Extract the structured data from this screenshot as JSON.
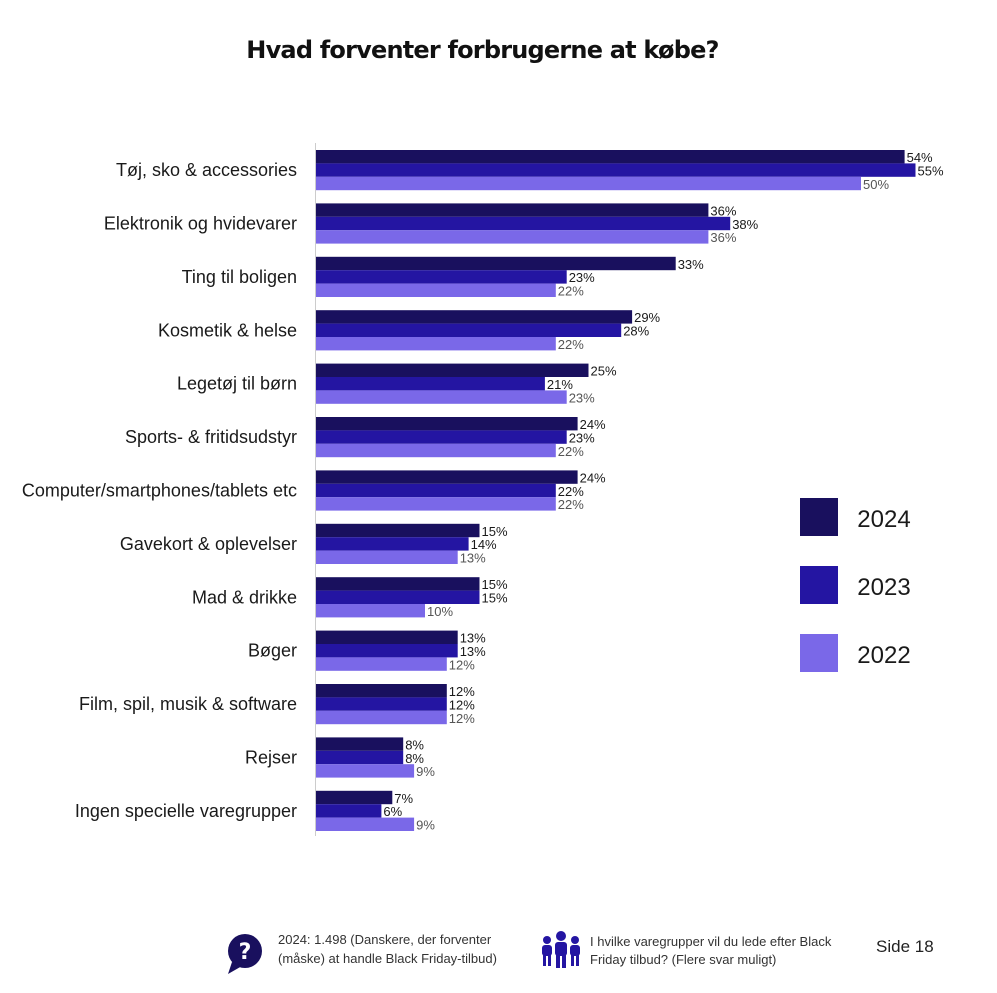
{
  "title": "Hvad forventer forbrugerne at købe?",
  "colors": {
    "2024": "#19105e",
    "2023": "#2415a2",
    "2022": "#7a68e8"
  },
  "chart_data": {
    "type": "bar",
    "orientation": "horizontal",
    "title": "Hvad forventer forbrugerne at købe?",
    "categories": [
      "Tøj, sko & accessories",
      "Elektronik og hvidevarer",
      "Ting til boligen",
      "Kosmetik & helse",
      "Legetøj til børn",
      "Sports- & fritidsudstyr",
      "Computer/smartphones/tablets etc",
      "Gavekort & oplevelser",
      "Mad & drikke",
      "Bøger",
      "Film, spil, musik & software",
      "Rejser",
      "Ingen specielle varegrupper"
    ],
    "series": [
      {
        "name": "2024",
        "values": [
          54,
          36,
          33,
          29,
          25,
          24,
          24,
          15,
          15,
          13,
          12,
          8,
          7
        ]
      },
      {
        "name": "2023",
        "values": [
          55,
          38,
          23,
          28,
          21,
          23,
          22,
          14,
          15,
          13,
          12,
          8,
          6
        ]
      },
      {
        "name": "2022",
        "values": [
          50,
          36,
          22,
          22,
          23,
          22,
          22,
          13,
          10,
          12,
          12,
          9,
          9
        ]
      }
    ],
    "value_suffix": "%",
    "xlim": [
      0,
      60
    ],
    "grid": false,
    "legend": "right"
  },
  "footer": {
    "sample": "2024: 1.498 (Danskere, der forventer (måske) at handle Black Friday-tilbud)",
    "question": "I hvilke varegrupper vil du lede efter Black Friday tilbud? (Flere svar muligt)",
    "page": "Side 18"
  },
  "icons": {
    "sample": "speech-bubble-question-icon",
    "question": "people-group-icon"
  }
}
